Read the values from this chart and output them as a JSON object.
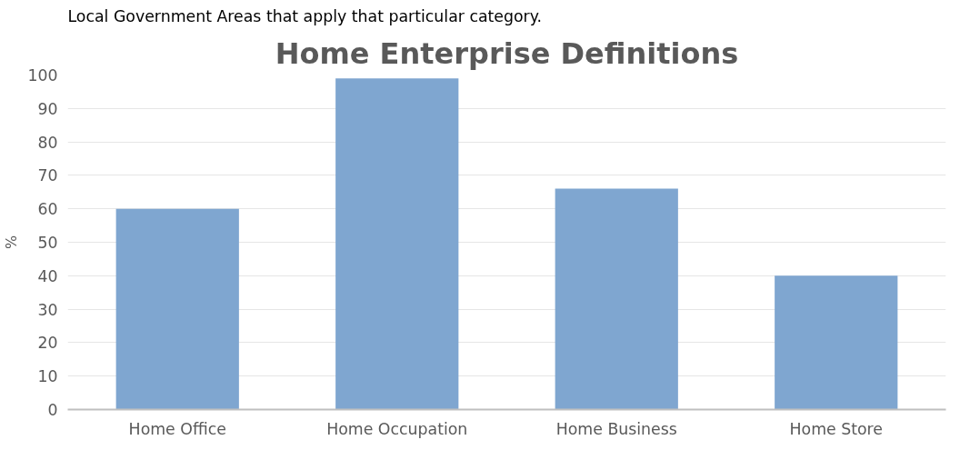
{
  "chart_data": {
    "type": "bar",
    "title": "Home Enterprise Definitions",
    "ylabel": "%",
    "categories": [
      "Home Office",
      "Home Occupation",
      "Home Business",
      "Home Store"
    ],
    "values": [
      60,
      99,
      66,
      40
    ],
    "color": "#7fa6d0",
    "ylim": [
      0,
      100
    ],
    "yticks": [
      0,
      10,
      20,
      30,
      40,
      50,
      60,
      70,
      80,
      90,
      100
    ],
    "grid": "y",
    "annotations": [
      "Local Government Areas that apply that particular category."
    ]
  }
}
